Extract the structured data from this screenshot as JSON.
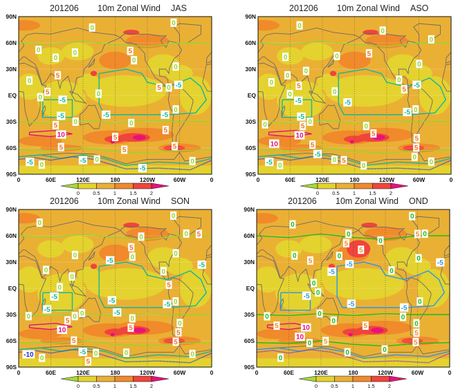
{
  "axes": {
    "lat_labels": [
      "90N",
      "60N",
      "30N",
      "EQ",
      "30S",
      "60S",
      "90S"
    ],
    "lon_labels": [
      "0",
      "60E",
      "120E",
      "180",
      "120W",
      "60W",
      "0"
    ]
  },
  "colorbar": {
    "labels": [
      "0",
      "0.5",
      "1",
      "1.5",
      "2"
    ],
    "colors": [
      "#a8d838",
      "#e4d22e",
      "#eab034",
      "#f08a2a",
      "#f0443c",
      "#e8107c"
    ]
  },
  "contour_colors": {
    "default": {
      "zero": "#90d830",
      "neg": "#10b898",
      "pos": "#f07020",
      "ten": "#e0107a",
      "negblue": "#2040d8",
      "neg10": "#2030c8"
    },
    "OND": {
      "zero": "#18c018",
      "neg": "#2898e8",
      "pos": "#f08a2a",
      "ten": "#e0107a",
      "negblue": "#8030c8",
      "neg10": "#2030c8"
    }
  },
  "panels": [
    {
      "title": {
        "date": "201206",
        "variable": "10m Zonal Wind",
        "season": "JAS"
      },
      "contour_labels": [
        {
          "t": "0",
          "lon": 137,
          "lat": 77.5,
          "k": "zero"
        },
        {
          "t": "0",
          "lon": 289,
          "lat": 83,
          "k": "zero"
        },
        {
          "t": "0",
          "lon": 37,
          "lat": 52,
          "k": "zero"
        },
        {
          "t": "0",
          "lon": 105,
          "lat": 49,
          "k": "zero"
        },
        {
          "t": "0",
          "lon": 69,
          "lat": 43,
          "k": "zero"
        },
        {
          "t": "5",
          "lon": 208,
          "lat": 50,
          "k": "pos"
        },
        {
          "t": "0",
          "lon": 215,
          "lat": 41,
          "k": "zero"
        },
        {
          "t": "0",
          "lon": 293,
          "lat": 33,
          "k": "zero"
        },
        {
          "t": "5",
          "lon": 73,
          "lat": 23,
          "k": "pos"
        },
        {
          "t": "0",
          "lon": 20,
          "lat": 17,
          "k": "zero"
        },
        {
          "t": "5",
          "lon": 262,
          "lat": 9,
          "k": "pos"
        },
        {
          "t": "0",
          "lon": 280,
          "lat": 9,
          "k": "zero"
        },
        {
          "t": "-5",
          "lon": 298,
          "lat": 12,
          "k": "neg"
        },
        {
          "t": "5",
          "lon": 51,
          "lat": 4,
          "k": "pos"
        },
        {
          "t": "0",
          "lon": 43,
          "lat": -2,
          "k": "zero"
        },
        {
          "t": "0",
          "lon": 149,
          "lat": 2,
          "k": "zero"
        },
        {
          "t": "-5",
          "lon": 82,
          "lat": -5,
          "k": "neg"
        },
        {
          "t": "-5",
          "lon": 79,
          "lat": -25,
          "k": "neg"
        },
        {
          "t": "-5",
          "lon": 163,
          "lat": -22,
          "k": "neg"
        },
        {
          "t": "-5",
          "lon": 273,
          "lat": -22,
          "k": "neg"
        },
        {
          "t": "0",
          "lon": 293,
          "lat": -16,
          "k": "zero"
        },
        {
          "t": "0",
          "lon": 106,
          "lat": -30,
          "k": "zero"
        },
        {
          "t": "0",
          "lon": 210,
          "lat": -31.5,
          "k": "zero"
        },
        {
          "t": "5",
          "lon": 69,
          "lat": -34,
          "k": "pos"
        },
        {
          "t": "10",
          "lon": 79,
          "lat": -43,
          "k": "ten"
        },
        {
          "t": "5",
          "lon": 274,
          "lat": -39.5,
          "k": "pos"
        },
        {
          "t": "5",
          "lon": 180,
          "lat": -47.5,
          "k": "pos"
        },
        {
          "t": "5",
          "lon": 79,
          "lat": -59,
          "k": "pos"
        },
        {
          "t": "5",
          "lon": 197,
          "lat": -62,
          "k": "pos"
        },
        {
          "t": "5",
          "lon": 291,
          "lat": -58,
          "k": "pos"
        },
        {
          "t": "-5",
          "lon": 21,
          "lat": -76,
          "k": "neg"
        },
        {
          "t": "0",
          "lon": 43,
          "lat": -79,
          "k": "zero"
        },
        {
          "t": "-5",
          "lon": 120,
          "lat": -74,
          "k": "neg"
        },
        {
          "t": "0",
          "lon": 146,
          "lat": -73,
          "k": "zero"
        },
        {
          "t": "-5",
          "lon": 231,
          "lat": -83,
          "k": "neg"
        },
        {
          "t": "0",
          "lon": 324,
          "lat": -75,
          "k": "zero"
        }
      ]
    },
    {
      "title": {
        "date": "201206",
        "variable": "10m Zonal Wind",
        "season": "ASO"
      },
      "contour_labels": [
        {
          "t": "0",
          "lon": 77.5,
          "lat": 80,
          "k": "zero"
        },
        {
          "t": "0",
          "lon": 232.5,
          "lat": 74,
          "k": "zero"
        },
        {
          "t": "0",
          "lon": 323,
          "lat": 64,
          "k": "zero"
        },
        {
          "t": "5",
          "lon": 207,
          "lat": 48,
          "k": "pos"
        },
        {
          "t": "0",
          "lon": 147,
          "lat": 45,
          "k": "zero"
        },
        {
          "t": "0",
          "lon": 51,
          "lat": 44,
          "k": "zero"
        },
        {
          "t": "0",
          "lon": 300.5,
          "lat": 36,
          "k": "zero"
        },
        {
          "t": "0",
          "lon": 89.5,
          "lat": 28,
          "k": "zero"
        },
        {
          "t": "0",
          "lon": 55,
          "lat": 23,
          "k": "zero"
        },
        {
          "t": "0",
          "lon": 25,
          "lat": 15,
          "k": "zero"
        },
        {
          "t": "0",
          "lon": 263,
          "lat": 18,
          "k": "zero"
        },
        {
          "t": "5",
          "lon": 76,
          "lat": 11,
          "k": "pos"
        },
        {
          "t": "-5",
          "lon": 296,
          "lat": 12,
          "k": "neg"
        },
        {
          "t": "5",
          "lon": 272.5,
          "lat": 7,
          "k": "pos"
        },
        {
          "t": "0",
          "lon": 143,
          "lat": 4.5,
          "k": "zero"
        },
        {
          "t": "0",
          "lon": 60,
          "lat": 1.5,
          "k": "zero"
        },
        {
          "t": "-5",
          "lon": 74.5,
          "lat": -6,
          "k": "neg"
        },
        {
          "t": "-5",
          "lon": 167,
          "lat": -8,
          "k": "neg"
        },
        {
          "t": "-5",
          "lon": 281,
          "lat": -19,
          "k": "neg"
        },
        {
          "t": "0",
          "lon": 291,
          "lat": -16,
          "k": "zero"
        },
        {
          "t": "-5",
          "lon": 84,
          "lat": -26,
          "k": "neg"
        },
        {
          "t": "0",
          "lon": 93,
          "lat": -30,
          "k": "zero"
        },
        {
          "t": "5",
          "lon": 84,
          "lat": -35.5,
          "k": "pos"
        },
        {
          "t": "0",
          "lon": 13,
          "lat": -33,
          "k": "zero"
        },
        {
          "t": "0",
          "lon": 203,
          "lat": -35,
          "k": "zero"
        },
        {
          "t": "5",
          "lon": 214,
          "lat": -43.5,
          "k": "pos"
        },
        {
          "t": "10",
          "lon": 77.5,
          "lat": -43,
          "k": "ten"
        },
        {
          "t": "10",
          "lon": 30,
          "lat": -55,
          "k": "ten"
        },
        {
          "t": "5",
          "lon": 296,
          "lat": -49.5,
          "k": "pos"
        },
        {
          "t": "5",
          "lon": 295,
          "lat": -59,
          "k": "pos"
        },
        {
          "t": "5",
          "lon": 101.5,
          "lat": -58,
          "k": "pos"
        },
        {
          "t": "-5",
          "lon": 111,
          "lat": -65,
          "k": "neg"
        },
        {
          "t": "0",
          "lon": 292,
          "lat": -70,
          "k": "zero"
        },
        {
          "t": "0",
          "lon": 323,
          "lat": -75.6,
          "k": "zero"
        },
        {
          "t": "-5",
          "lon": 21,
          "lat": -76,
          "k": "neg"
        },
        {
          "t": "0",
          "lon": 41,
          "lat": -79.5,
          "k": "zero"
        },
        {
          "t": "0",
          "lon": 142.5,
          "lat": -73.5,
          "k": "zero"
        },
        {
          "t": "5",
          "lon": 160,
          "lat": -74,
          "k": "pos"
        },
        {
          "t": "0",
          "lon": 197,
          "lat": -80,
          "k": "zero"
        }
      ]
    },
    {
      "title": {
        "date": "201206",
        "variable": "10m Zonal Wind",
        "season": "SON"
      },
      "contour_labels": [
        {
          "t": "0",
          "lon": 288.5,
          "lat": 83,
          "k": "zero"
        },
        {
          "t": "0",
          "lon": 39,
          "lat": 75,
          "k": "zero"
        },
        {
          "t": "0",
          "lon": 312.5,
          "lat": 62.5,
          "k": "zero"
        },
        {
          "t": "5",
          "lon": 336,
          "lat": 62,
          "k": "pos"
        },
        {
          "t": "0",
          "lon": 228.5,
          "lat": 59,
          "k": "zero"
        },
        {
          "t": "5",
          "lon": 210,
          "lat": 46,
          "k": "pos"
        },
        {
          "t": "0",
          "lon": 293,
          "lat": 40,
          "k": "zero"
        },
        {
          "t": "0",
          "lon": 105,
          "lat": 38,
          "k": "zero"
        },
        {
          "t": "0",
          "lon": 212,
          "lat": 37,
          "k": "zero"
        },
        {
          "t": "-5",
          "lon": 170.5,
          "lat": 32,
          "k": "neg"
        },
        {
          "t": "-5",
          "lon": 341.5,
          "lat": 27,
          "k": "neg"
        },
        {
          "t": "0",
          "lon": 51,
          "lat": 21,
          "k": "zero"
        },
        {
          "t": "0",
          "lon": 270,
          "lat": 19.5,
          "k": "zero"
        },
        {
          "t": "0",
          "lon": 99.5,
          "lat": 13.5,
          "k": "zero"
        },
        {
          "t": "5",
          "lon": 280,
          "lat": 4,
          "k": "pos"
        },
        {
          "t": "0",
          "lon": 76.5,
          "lat": -0.4,
          "k": "zero"
        },
        {
          "t": "-5",
          "lon": 66.5,
          "lat": -7.8,
          "k": "neg"
        },
        {
          "t": "-5",
          "lon": 174,
          "lat": -13.7,
          "k": "neg"
        },
        {
          "t": "-5",
          "lon": 282.5,
          "lat": -18,
          "k": "neg"
        },
        {
          "t": "0",
          "lon": 287,
          "lat": -15,
          "k": "zero"
        },
        {
          "t": "-5",
          "lon": 53,
          "lat": -24,
          "k": "neg"
        },
        {
          "t": "-5",
          "lon": 183.5,
          "lat": -27.5,
          "k": "neg"
        },
        {
          "t": "0",
          "lon": 18.5,
          "lat": -31.8,
          "k": "zero"
        },
        {
          "t": "0",
          "lon": 107,
          "lat": -31.8,
          "k": "zero"
        },
        {
          "t": "0",
          "lon": 115,
          "lat": -28.3,
          "k": "zero"
        },
        {
          "t": "5",
          "lon": 92,
          "lat": -37,
          "k": "pos"
        },
        {
          "t": "0",
          "lon": 212,
          "lat": -36.3,
          "k": "zero"
        },
        {
          "t": "5",
          "lon": 209,
          "lat": -43,
          "k": "pos"
        },
        {
          "t": "0",
          "lon": 300.5,
          "lat": -40.3,
          "k": "zero"
        },
        {
          "t": "10",
          "lon": 81,
          "lat": -47,
          "k": "ten"
        },
        {
          "t": "5",
          "lon": 298,
          "lat": -49.6,
          "k": "pos"
        },
        {
          "t": "5",
          "lon": 103,
          "lat": -59.7,
          "k": "pos"
        },
        {
          "t": "5",
          "lon": 293,
          "lat": -61,
          "k": "pos"
        },
        {
          "t": "-10",
          "lon": 18.5,
          "lat": -75.4,
          "k": "neg10"
        },
        {
          "t": "0",
          "lon": 43.5,
          "lat": -79.4,
          "k": "zero"
        },
        {
          "t": "-5",
          "lon": 119.7,
          "lat": -74,
          "k": "neg"
        },
        {
          "t": "0",
          "lon": 144,
          "lat": -74,
          "k": "zero"
        },
        {
          "t": "0",
          "lon": 200.7,
          "lat": -73.5,
          "k": "zero"
        },
        {
          "t": "5",
          "lon": 129.6,
          "lat": -82,
          "k": "pos"
        },
        {
          "t": "0",
          "lon": 324,
          "lat": -74.9,
          "k": "zero"
        }
      ]
    },
    {
      "title": {
        "date": "201206",
        "variable": "10m Zonal Wind",
        "season": "OND"
      },
      "contour_labels": [
        {
          "t": "0",
          "lon": 290,
          "lat": 82.4,
          "k": "zero"
        },
        {
          "t": "0",
          "lon": 67,
          "lat": 73,
          "k": "zero"
        },
        {
          "t": "5",
          "lon": 300,
          "lat": 62,
          "k": "pos"
        },
        {
          "t": "0",
          "lon": 313.7,
          "lat": 62.4,
          "k": "zero"
        },
        {
          "t": "0",
          "lon": 171.4,
          "lat": 59.8,
          "k": "zero"
        },
        {
          "t": "5",
          "lon": 167,
          "lat": 54,
          "k": "pos"
        },
        {
          "t": "0",
          "lon": 231,
          "lat": 54.5,
          "k": "zero"
        },
        {
          "t": "5",
          "lon": 194.6,
          "lat": 44,
          "k": "pos"
        },
        {
          "t": "0",
          "lon": 70.7,
          "lat": 37.4,
          "k": "zero"
        },
        {
          "t": "5",
          "lon": 100,
          "lat": 31.7,
          "k": "pos"
        },
        {
          "t": "0",
          "lon": 154,
          "lat": 37,
          "k": "zero"
        },
        {
          "t": "0",
          "lon": 302,
          "lat": 34.3,
          "k": "zero"
        },
        {
          "t": "-5",
          "lon": 173,
          "lat": 27.7,
          "k": "neg"
        },
        {
          "t": "-5",
          "lon": 342.4,
          "lat": 29.6,
          "k": "neg"
        },
        {
          "t": "-5",
          "lon": 140,
          "lat": 19,
          "k": "neg"
        },
        {
          "t": "0",
          "lon": 251.6,
          "lat": 20.4,
          "k": "zero"
        },
        {
          "t": "0",
          "lon": 106.7,
          "lat": 4.9,
          "k": "zero"
        },
        {
          "t": "0",
          "lon": 114.4,
          "lat": -3.8,
          "k": "zero"
        },
        {
          "t": "-5",
          "lon": 93,
          "lat": -8.5,
          "k": "neg"
        },
        {
          "t": "0",
          "lon": 304.3,
          "lat": -15,
          "k": "zero"
        },
        {
          "t": "-5",
          "lon": 176.6,
          "lat": -17.5,
          "k": "neg"
        },
        {
          "t": "-5",
          "lon": 275,
          "lat": -22.2,
          "k": "neg"
        },
        {
          "t": "0",
          "lon": 273,
          "lat": -32.2,
          "k": "zero"
        },
        {
          "t": "0",
          "lon": 19.3,
          "lat": -32,
          "k": "zero"
        },
        {
          "t": "0",
          "lon": 117.4,
          "lat": -28.8,
          "k": "zero"
        },
        {
          "t": "0",
          "lon": 143.6,
          "lat": -36.9,
          "k": "zero"
        },
        {
          "t": "5",
          "lon": 37.3,
          "lat": -42.7,
          "k": "pos"
        },
        {
          "t": "5",
          "lon": 203,
          "lat": -42.7,
          "k": "pos"
        },
        {
          "t": "0",
          "lon": 298,
          "lat": -42.4,
          "k": "zero"
        },
        {
          "t": "5",
          "lon": 298,
          "lat": -49.3,
          "k": "pos"
        },
        {
          "t": "10",
          "lon": 92,
          "lat": -47,
          "k": "ten"
        },
        {
          "t": "10",
          "lon": 80.6,
          "lat": -53,
          "k": "ten"
        },
        {
          "t": "0",
          "lon": 98.6,
          "lat": -62.4,
          "k": "zero"
        },
        {
          "t": "5",
          "lon": 128.6,
          "lat": -60.3,
          "k": "pos"
        },
        {
          "t": "5",
          "lon": 296.6,
          "lat": -60.3,
          "k": "pos"
        },
        {
          "t": "0",
          "lon": 238.7,
          "lat": -69.8,
          "k": "zero"
        },
        {
          "t": "0",
          "lon": 169.3,
          "lat": -73,
          "k": "zero"
        },
        {
          "t": "0",
          "lon": 44.6,
          "lat": -79.2,
          "k": "zero"
        }
      ]
    }
  ]
}
